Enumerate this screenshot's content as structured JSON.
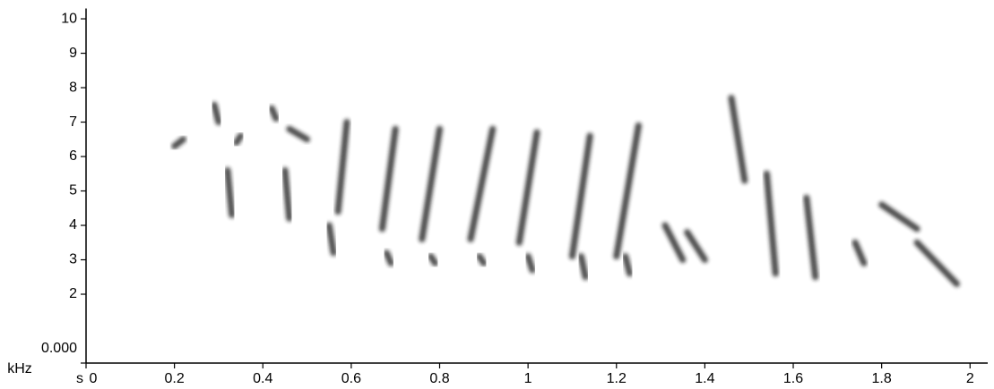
{
  "chart_data": {
    "type": "spectrogram",
    "x_label": "s",
    "y_label": "kHz",
    "xlim": [
      0,
      2.04
    ],
    "ylim": [
      0,
      10.3
    ],
    "xticks": [
      0,
      0.2,
      0.4,
      0.6,
      0.8,
      1,
      1.2,
      1.4,
      1.6,
      1.8,
      2
    ],
    "yticks": [
      {
        "value": 0,
        "label": "0.000"
      },
      2,
      3,
      4,
      5,
      6,
      7,
      8,
      9,
      10
    ],
    "color": "#1a1a1a",
    "notes": [
      {
        "t": [
          0.2,
          0.22
        ],
        "f": [
          6.3,
          6.5
        ]
      },
      {
        "t": [
          0.29,
          0.3
        ],
        "f": [
          7.5,
          7.0
        ]
      },
      {
        "t": [
          0.32,
          0.33
        ],
        "f": [
          5.6,
          4.3
        ]
      },
      {
        "t": [
          0.34,
          0.35
        ],
        "f": [
          6.4,
          6.6
        ]
      },
      {
        "t": [
          0.42,
          0.43
        ],
        "f": [
          7.4,
          7.1
        ]
      },
      {
        "t": [
          0.45,
          0.46
        ],
        "f": [
          5.6,
          4.2
        ]
      },
      {
        "t": [
          0.46,
          0.5
        ],
        "f": [
          6.8,
          6.5
        ]
      },
      {
        "t": [
          0.59,
          0.57
        ],
        "f": [
          7.0,
          4.4
        ]
      },
      {
        "t": [
          0.55,
          0.56
        ],
        "f": [
          4.0,
          3.2
        ]
      },
      {
        "t": [
          0.7,
          0.67
        ],
        "f": [
          6.8,
          3.9
        ]
      },
      {
        "t": [
          0.68,
          0.69
        ],
        "f": [
          3.2,
          2.9
        ]
      },
      {
        "t": [
          0.8,
          0.76
        ],
        "f": [
          6.8,
          3.6
        ]
      },
      {
        "t": [
          0.78,
          0.79
        ],
        "f": [
          3.1,
          2.9
        ]
      },
      {
        "t": [
          0.92,
          0.87
        ],
        "f": [
          6.8,
          3.6
        ]
      },
      {
        "t": [
          0.89,
          0.9
        ],
        "f": [
          3.1,
          2.9
        ]
      },
      {
        "t": [
          1.02,
          0.98
        ],
        "f": [
          6.7,
          3.5
        ]
      },
      {
        "t": [
          1.0,
          1.01
        ],
        "f": [
          3.1,
          2.7
        ]
      },
      {
        "t": [
          1.14,
          1.1
        ],
        "f": [
          6.6,
          3.1
        ]
      },
      {
        "t": [
          1.12,
          1.13
        ],
        "f": [
          3.1,
          2.5
        ]
      },
      {
        "t": [
          1.25,
          1.2
        ],
        "f": [
          6.9,
          3.1
        ]
      },
      {
        "t": [
          1.22,
          1.23
        ],
        "f": [
          3.1,
          2.6
        ]
      },
      {
        "t": [
          1.31,
          1.35
        ],
        "f": [
          4.0,
          3.0
        ]
      },
      {
        "t": [
          1.36,
          1.4
        ],
        "f": [
          3.8,
          3.0
        ]
      },
      {
        "t": [
          1.46,
          1.49
        ],
        "f": [
          7.7,
          5.3
        ]
      },
      {
        "t": [
          1.54,
          1.56
        ],
        "f": [
          5.5,
          2.6
        ]
      },
      {
        "t": [
          1.63,
          1.65
        ],
        "f": [
          4.8,
          2.5
        ]
      },
      {
        "t": [
          1.74,
          1.76
        ],
        "f": [
          3.5,
          2.9
        ]
      },
      {
        "t": [
          1.8,
          1.88
        ],
        "f": [
          4.6,
          3.9
        ]
      },
      {
        "t": [
          1.88,
          1.97
        ],
        "f": [
          3.5,
          2.3
        ]
      }
    ]
  }
}
